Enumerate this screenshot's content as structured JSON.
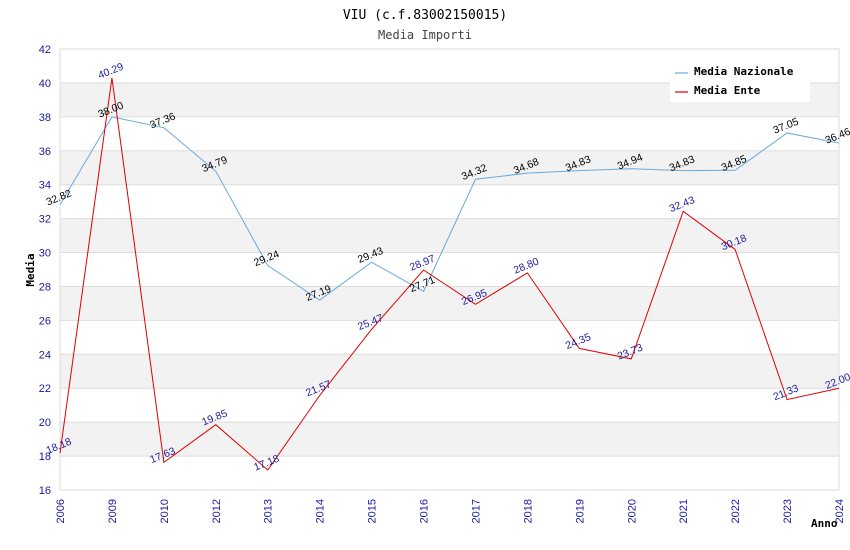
{
  "chart_data": {
    "type": "line",
    "title": "VIU (c.f.83002150015)",
    "subtitle": "Media Importi",
    "xlabel": "Anno",
    "ylabel": "Media",
    "ylim": [
      16,
      42
    ],
    "yticks": [
      "16",
      "18",
      "20",
      "22",
      "24",
      "26",
      "28",
      "30",
      "32",
      "34",
      "36",
      "38",
      "40",
      "42"
    ],
    "categories": [
      "2006",
      "2009",
      "2010",
      "2012",
      "2013",
      "2014",
      "2015",
      "2016",
      "2017",
      "2018",
      "2019",
      "2020",
      "2021",
      "2022",
      "2023",
      "2024"
    ],
    "series": [
      {
        "name": "Media Nazionale",
        "color": "#6aa9dc",
        "label_color": "#000000",
        "values": [
          32.82,
          38.0,
          37.36,
          34.79,
          29.24,
          27.19,
          29.43,
          27.71,
          34.32,
          34.68,
          34.83,
          34.94,
          34.83,
          34.85,
          37.05,
          36.46
        ],
        "labels": [
          "32.82",
          "38.00",
          "37.36",
          "34.79",
          "29.24",
          "27.19",
          "29.43",
          "27.71",
          "34.32",
          "34.68",
          "34.83",
          "34.94",
          "34.83",
          "34.85",
          "37.05",
          "36.46"
        ]
      },
      {
        "name": "Media Ente",
        "color": "#e00000",
        "label_color": "#1a1aa0",
        "values": [
          18.18,
          40.29,
          17.63,
          19.85,
          17.18,
          21.57,
          25.47,
          28.97,
          26.95,
          28.8,
          24.35,
          23.73,
          32.43,
          30.18,
          21.33,
          22.0
        ],
        "labels": [
          "18.18",
          "40.29",
          "17.63",
          "19.85",
          "17.18",
          "21.57",
          "25.47",
          "28.97",
          "26.95",
          "28.80",
          "24.35",
          "23.73",
          "32.43",
          "30.18",
          "21.33",
          "22.00"
        ]
      }
    ],
    "legend": "top-right",
    "grid": true
  }
}
